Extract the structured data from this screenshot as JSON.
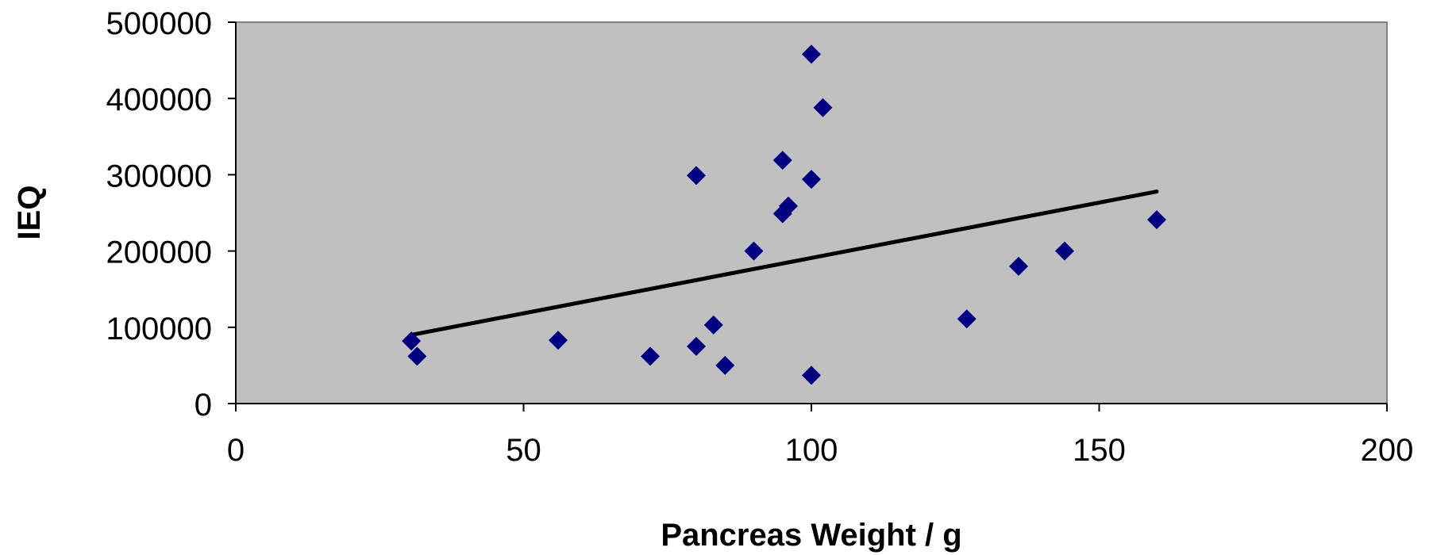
{
  "chart_data": {
    "type": "scatter",
    "title": "",
    "xlabel": "Pancreas Weight / g",
    "ylabel": "IEQ",
    "xlim": [
      0,
      200
    ],
    "ylim": [
      0,
      500000
    ],
    "x_ticks": [
      "0",
      "50",
      "100",
      "150",
      "200"
    ],
    "y_ticks": [
      "0",
      "100000",
      "200000",
      "300000",
      "400000",
      "500000"
    ],
    "grid": false,
    "legend": "none",
    "plot_background": "#c0c0c0",
    "marker_color": "#000080",
    "marker_shape": "diamond",
    "points": [
      {
        "x": 30.5,
        "y": 82000
      },
      {
        "x": 31.5,
        "y": 62000
      },
      {
        "x": 56,
        "y": 83000
      },
      {
        "x": 72,
        "y": 62000
      },
      {
        "x": 80,
        "y": 75000
      },
      {
        "x": 83,
        "y": 103000
      },
      {
        "x": 85,
        "y": 50000
      },
      {
        "x": 80,
        "y": 299000
      },
      {
        "x": 90,
        "y": 200000
      },
      {
        "x": 95,
        "y": 249000
      },
      {
        "x": 96,
        "y": 259000
      },
      {
        "x": 95,
        "y": 319000
      },
      {
        "x": 100,
        "y": 294000
      },
      {
        "x": 100,
        "y": 458000
      },
      {
        "x": 102,
        "y": 388000
      },
      {
        "x": 100,
        "y": 37000
      },
      {
        "x": 127,
        "y": 111000
      },
      {
        "x": 136,
        "y": 180000
      },
      {
        "x": 144,
        "y": 200000
      },
      {
        "x": 160,
        "y": 241000
      }
    ],
    "trendline": {
      "type": "linear",
      "color": "#000000",
      "x": [
        30.5,
        160
      ],
      "y": [
        90000,
        278000
      ]
    }
  }
}
